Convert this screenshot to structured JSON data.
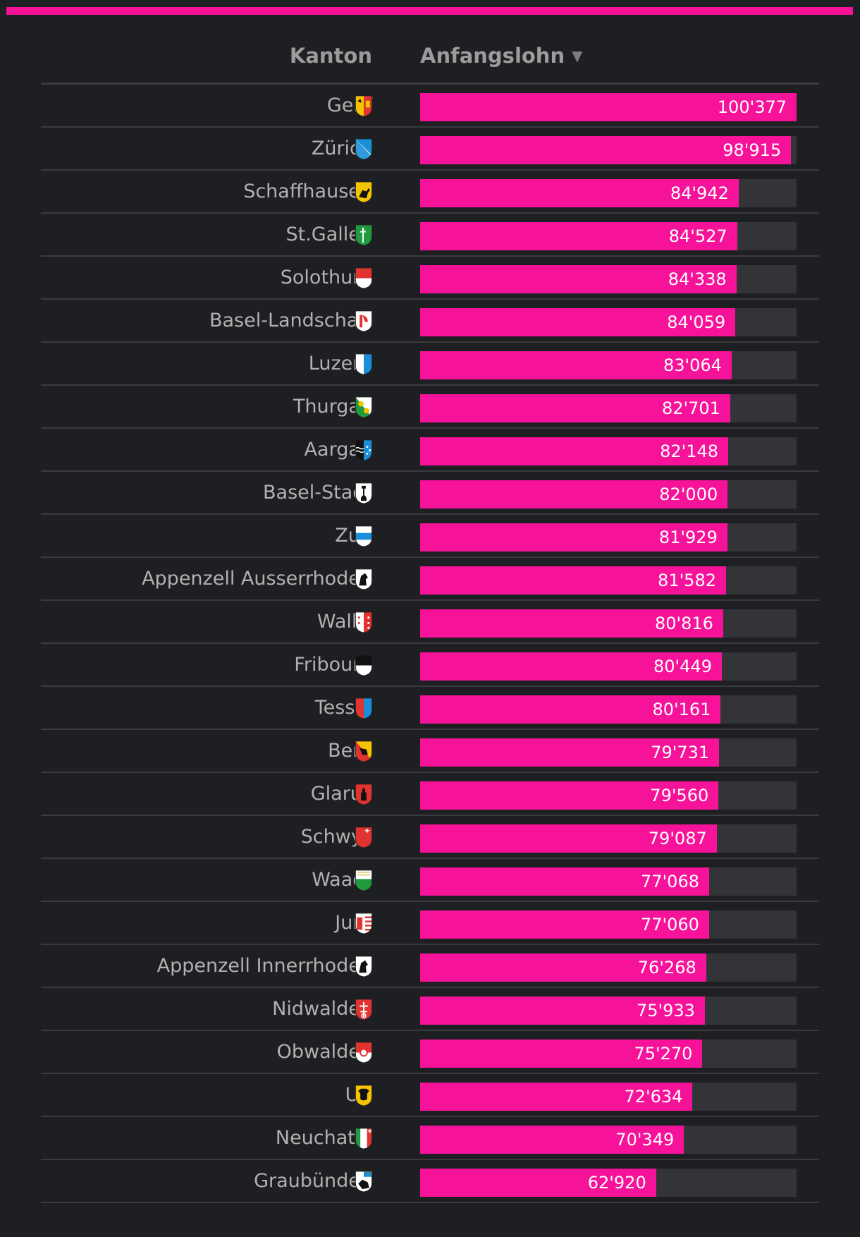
{
  "header": {
    "kanton_label": "Kanton",
    "lohn_label": "Anfangslohn"
  },
  "colors": {
    "accent": "#f7129a",
    "track": "#333437",
    "background": "#1e1f22"
  },
  "chart_data": {
    "type": "bar",
    "orientation": "horizontal",
    "sorted": "descending",
    "xlim": [
      0,
      100377
    ],
    "categories": [
      "Genf",
      "Zürich",
      "Schaffhausen",
      "St.Gallen",
      "Solothurn",
      "Basel-Landschaft",
      "Luzern",
      "Thurgau",
      "Aargau",
      "Basel-Stadt",
      "Zug",
      "Appenzell Ausserrhoden",
      "Wallis",
      "Fribourg",
      "Tessin",
      "Bern",
      "Glarus",
      "Schwyz",
      "Waadt",
      "Jura",
      "Appenzell Innerrhoden",
      "Nidwalden",
      "Obwalden",
      "Uri",
      "Neuchatel",
      "Graubünden"
    ],
    "values": [
      100377,
      98915,
      84942,
      84527,
      84338,
      84059,
      83064,
      82701,
      82148,
      82000,
      81929,
      81582,
      80816,
      80449,
      80161,
      79731,
      79560,
      79087,
      77068,
      77060,
      76268,
      75933,
      75270,
      72634,
      70349,
      62920
    ],
    "labels": [
      "100'377",
      "98'915",
      "84'942",
      "84'527",
      "84'338",
      "84'059",
      "83'064",
      "82'701",
      "82'148",
      "82'000",
      "81'929",
      "81'582",
      "80'816",
      "80'449",
      "80'161",
      "79'731",
      "79'560",
      "79'087",
      "77'068",
      "77'060",
      "76'268",
      "75'933",
      "75'270",
      "72'634",
      "70'349",
      "62'920"
    ],
    "flag_icons": [
      "geneva-coat-of-arms-icon",
      "zurich-coat-of-arms-icon",
      "schaffhausen-coat-of-arms-icon",
      "st-gallen-coat-of-arms-icon",
      "solothurn-coat-of-arms-icon",
      "basel-landschaft-coat-of-arms-icon",
      "luzern-coat-of-arms-icon",
      "thurgau-coat-of-arms-icon",
      "aargau-coat-of-arms-icon",
      "basel-stadt-coat-of-arms-icon",
      "zug-coat-of-arms-icon",
      "appenzell-ausserrhoden-coat-of-arms-icon",
      "wallis-coat-of-arms-icon",
      "fribourg-coat-of-arms-icon",
      "tessin-coat-of-arms-icon",
      "bern-coat-of-arms-icon",
      "glarus-coat-of-arms-icon",
      "schwyz-coat-of-arms-icon",
      "waadt-coat-of-arms-icon",
      "jura-coat-of-arms-icon",
      "appenzell-innerrhoden-coat-of-arms-icon",
      "nidwalden-coat-of-arms-icon",
      "obwalden-coat-of-arms-icon",
      "uri-coat-of-arms-icon",
      "neuchatel-coat-of-arms-icon",
      "graubuenden-coat-of-arms-icon"
    ]
  }
}
